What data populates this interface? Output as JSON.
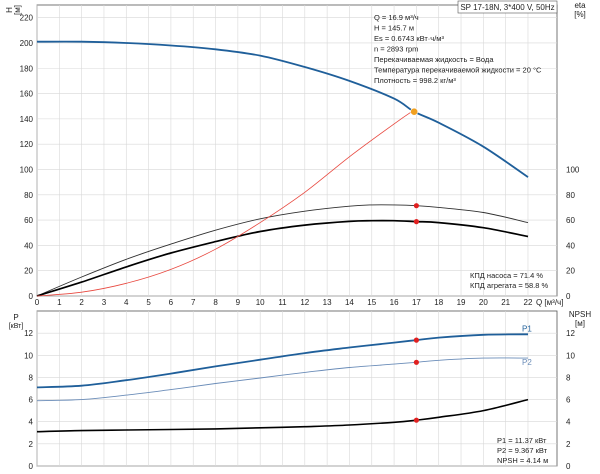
{
  "chart_data": [
    {
      "type": "line",
      "title": "SP 17-18N, 3*400 V, 50Hz",
      "left_axis": {
        "label_top": "H",
        "label_bottom": "[м]",
        "range": [
          0,
          230
        ],
        "ticks": [
          0,
          20,
          40,
          60,
          80,
          100,
          120,
          140,
          160,
          180,
          200,
          220
        ]
      },
      "right_axis": {
        "label_top": "eta",
        "label_bottom": "[%]",
        "range": [
          0,
          230
        ],
        "ticks": [
          0,
          20,
          40,
          60,
          80,
          100
        ]
      },
      "x_axis": {
        "label": "Q [м³/ч]",
        "range": [
          0,
          23.3
        ],
        "ticks": [
          0,
          1,
          2,
          3,
          4,
          5,
          6,
          7,
          8,
          9,
          10,
          11,
          12,
          13,
          14,
          15,
          16,
          17,
          18,
          19,
          20,
          21,
          22
        ]
      },
      "grid": true,
      "series": [
        {
          "key": "H",
          "axis": "left",
          "color": "#1f5f9a",
          "x": [
            0,
            2,
            4,
            6,
            8,
            10,
            12,
            14,
            16,
            16.9,
            18,
            20,
            22
          ],
          "y": [
            201,
            201,
            200,
            198,
            195,
            190,
            181,
            170,
            156,
            145.7,
            137,
            118,
            94
          ]
        },
        {
          "key": "eta_pump",
          "axis": "right",
          "color": "#303030",
          "x": [
            0,
            2,
            4,
            6,
            8,
            10,
            12,
            14,
            15,
            16,
            17,
            18,
            20,
            22
          ],
          "y": [
            0,
            15,
            29,
            41,
            52,
            61,
            67,
            71,
            72,
            72,
            71.4,
            70,
            66,
            58
          ]
        },
        {
          "key": "eta_unit",
          "axis": "right",
          "color": "#000000",
          "x": [
            0,
            2,
            4,
            6,
            8,
            10,
            12,
            14,
            15,
            16,
            17,
            18,
            20,
            22
          ],
          "y": [
            0,
            11,
            23,
            34,
            43,
            51,
            56,
            59,
            59.5,
            59.5,
            58.8,
            58,
            54,
            47
          ]
        },
        {
          "key": "Es",
          "axis": "left",
          "color": "#e8483f",
          "x": [
            0,
            2,
            4,
            6,
            8,
            10,
            12,
            14,
            16,
            16.9
          ],
          "y": [
            0,
            3,
            10,
            21,
            37,
            58,
            82,
            110,
            136,
            147
          ]
        }
      ],
      "operating_point": {
        "x": 16.9,
        "y": 145.7,
        "color": "#f0a020"
      },
      "duty_points": [
        {
          "x": 17,
          "y": 71.4
        },
        {
          "x": 17,
          "y": 58.8
        }
      ],
      "info_lines": [
        "Q = 16.9 м³/ч",
        "H = 145.7 м",
        "Es = 0.6743 кВт·ч/м³",
        "n = 2893 rpm",
        "Перекачиваемая жидкость = Вода",
        "Температура перекачиваемой жидкости = 20 °C",
        "Плотность = 998.2 кг/м³"
      ],
      "efficiency_lines": [
        "КПД насоса = 71.4 %",
        "КПД агрегата = 58.8 %"
      ]
    },
    {
      "type": "line",
      "left_axis": {
        "label_top": "P",
        "label_bottom": "[кВт]",
        "range": [
          0,
          14
        ],
        "ticks": [
          0,
          2,
          4,
          6,
          8,
          10,
          12
        ]
      },
      "right_axis": {
        "label_top": "NPSH",
        "label_bottom": "[м]",
        "range": [
          0,
          14
        ],
        "ticks": [
          0,
          2,
          4,
          6,
          8,
          10,
          12
        ]
      },
      "x_axis": {
        "range": [
          0,
          23.3
        ]
      },
      "grid": true,
      "series": [
        {
          "name": "P1",
          "axis": "left",
          "color": "#1f5f9a",
          "x": [
            0,
            2,
            4,
            6,
            8,
            10,
            12,
            14,
            16,
            17,
            18,
            20,
            22
          ],
          "y": [
            7.1,
            7.25,
            7.75,
            8.35,
            9.0,
            9.6,
            10.2,
            10.7,
            11.15,
            11.37,
            11.6,
            11.85,
            11.9
          ]
        },
        {
          "name": "P2",
          "axis": "left",
          "color": "#6a8cb8",
          "x": [
            0,
            2,
            4,
            6,
            8,
            10,
            12,
            14,
            16,
            17,
            18,
            20,
            22
          ],
          "y": [
            5.9,
            6.0,
            6.4,
            6.9,
            7.45,
            7.95,
            8.45,
            8.9,
            9.2,
            9.367,
            9.55,
            9.75,
            9.75
          ]
        },
        {
          "key": "NPSH",
          "axis": "right",
          "color": "#000000",
          "x": [
            0,
            2,
            4,
            6,
            8,
            10,
            12,
            14,
            16,
            17,
            18,
            20,
            22
          ],
          "y": [
            3.1,
            3.2,
            3.25,
            3.3,
            3.35,
            3.45,
            3.55,
            3.7,
            3.95,
            4.14,
            4.4,
            5.0,
            6.0
          ]
        }
      ],
      "duty_points": [
        {
          "x": 17,
          "y": 11.37
        },
        {
          "x": 17,
          "y": 9.367
        },
        {
          "x": 17,
          "y": 4.14
        }
      ],
      "info_lines": [
        "P1 = 11.37 кВт",
        "P2 = 9.367 кВт",
        "NPSH = 4.14 м"
      ]
    }
  ]
}
